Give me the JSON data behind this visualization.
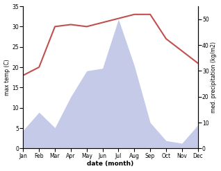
{
  "months": [
    "Jan",
    "Feb",
    "Mar",
    "Apr",
    "May",
    "Jun",
    "Jul",
    "Aug",
    "Sep",
    "Oct",
    "Nov",
    "Dec"
  ],
  "temperature": [
    18.0,
    20.0,
    30.0,
    30.5,
    30.0,
    31.0,
    32.0,
    33.0,
    33.0,
    27.0,
    24.0,
    21.0
  ],
  "precipitation": [
    7,
    14,
    8,
    20,
    30,
    31,
    50,
    32,
    10,
    3,
    2,
    9
  ],
  "temp_color": "#c0504d",
  "precip_fill_color": "#c5cae9",
  "temp_ylim": [
    0,
    35
  ],
  "precip_ylim": [
    0,
    55
  ],
  "temp_yticks": [
    0,
    5,
    10,
    15,
    20,
    25,
    30,
    35
  ],
  "precip_yticks": [
    0,
    10,
    20,
    30,
    40,
    50
  ],
  "ylabel_left": "max temp (C)",
  "ylabel_right": "med. precipitation (kg/m2)",
  "xlabel": "date (month)",
  "background_color": "#ffffff",
  "line_width": 1.5,
  "figsize": [
    3.18,
    2.47
  ],
  "dpi": 100
}
